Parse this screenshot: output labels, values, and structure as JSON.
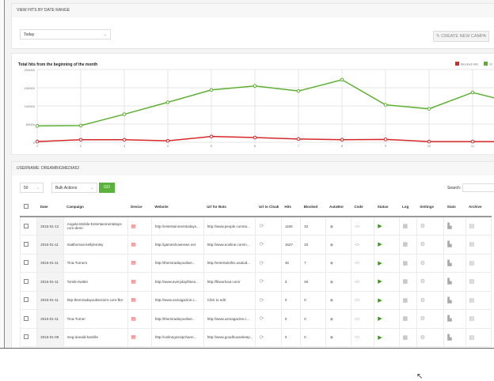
{
  "date_panel": {
    "title": "VIEW HITS BY DATE RANGE",
    "range_value": "Today",
    "create_label": "CREATE NEW CAMPA"
  },
  "chart_data": {
    "type": "line",
    "title": "Total hits from the beginning of the month",
    "x": [
      1,
      2,
      3,
      4,
      5,
      6,
      7,
      8,
      9,
      10,
      11,
      12
    ],
    "xticks": [
      "1",
      "2",
      "3",
      "4",
      "5",
      "6",
      "7",
      "8",
      "9",
      "10",
      "11"
    ],
    "yticks": [
      "200000",
      "150000",
      "100000",
      "50000",
      "0"
    ],
    "ylim": [
      0,
      200000
    ],
    "grid": true,
    "legend": "top-right",
    "series": [
      {
        "name": "Blocked Hits",
        "color": "#d62728",
        "values": [
          2000,
          7000,
          7000,
          4000,
          16000,
          13000,
          9000,
          7000,
          8000,
          2000,
          2000,
          2000
        ]
      },
      {
        "name": "Vi",
        "color": "#5cb031",
        "values": [
          45000,
          46000,
          77000,
          110000,
          144000,
          155000,
          141000,
          172000,
          103000,
          92000,
          137000,
          107000
        ]
      }
    ]
  },
  "table_panel": {
    "title": "USERNAME: DREAMBIGMEDIA52",
    "page_size": "50",
    "bulk_actions": "Bulk Actions",
    "go_label": "GO",
    "search_label": "Search:",
    "columns": [
      "Date",
      "Campaign",
      "Device",
      "Website",
      "Url for Bots",
      "Url to Cloak",
      "Hits",
      "Blocked",
      "AutoBot",
      "Code",
      "Status",
      "Log",
      "Settings",
      "Stats",
      "Archive"
    ],
    "rows": [
      {
        "date": "2015-01-12",
        "campaign": "Angela-Mobile-Entertainmentelays-com-demi-",
        "website": "http://entertainmenttodays...",
        "bots": "http://www.people.com/ar...",
        "hits": "1160",
        "blocked": "33"
      },
      {
        "date": "2015-01-11",
        "campaign": "matthomas-kellylemley",
        "website": "http://gameshownews.net",
        "bots": "http://www.eonline.com/n...",
        "hits": "1527",
        "blocked": "33"
      },
      {
        "date": "2015-01-11",
        "campaign": "Tina-Turners",
        "website": "http://themiradayoutlser...",
        "bots": "http://entertainthis.usatod...",
        "hits": "46",
        "blocked": "7"
      },
      {
        "date": "2015-01-11",
        "campaign": "Tomlin-twitter",
        "website": "http://www.everydayfitnes...",
        "bots": "http://fitworkout.com/",
        "hits": "3",
        "blocked": "46"
      },
      {
        "date": "2015-01-11",
        "campaign": "http-themiradayoutlserarm-com-fb2-",
        "website": "http://www.usmagazine.c...",
        "bots": "Click to edit",
        "hits": "0",
        "blocked": "0"
      },
      {
        "date": "2015-01-11",
        "campaign": "Tina-Turner",
        "website": "http://themiradayoutlser...",
        "bots": "http://www.usmagazine.c...",
        "hits": "0",
        "blocked": "0"
      },
      {
        "date": "2015-01-09",
        "campaign": "meg-donald-kamille",
        "website": "http://onlinegossipchann...",
        "bots": "http://www.goodhousekeep...",
        "hits": "0",
        "blocked": "0"
      }
    ]
  }
}
